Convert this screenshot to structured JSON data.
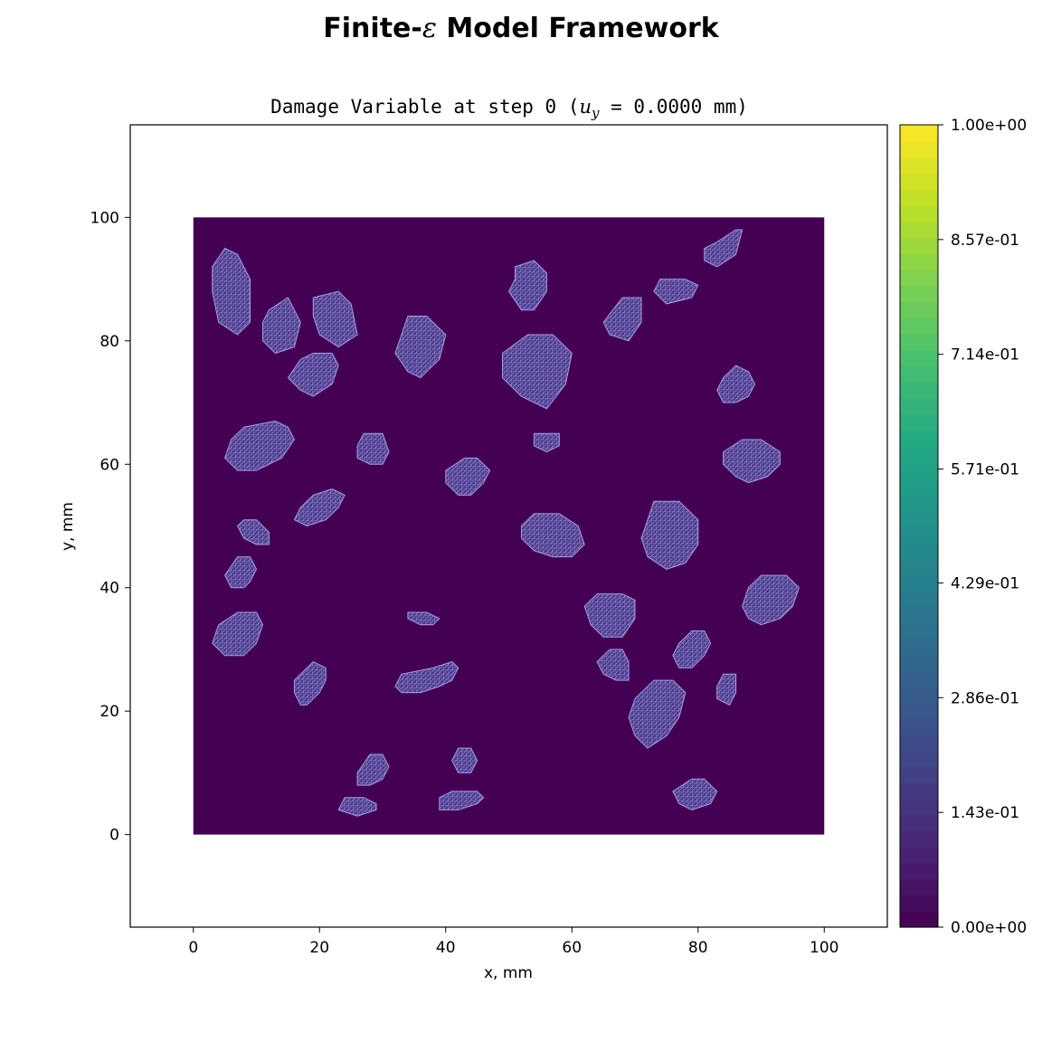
{
  "figure": {
    "suptitle_prefix": "Finite-",
    "suptitle_symbol": "ε",
    "suptitle_suffix": " Model Framework"
  },
  "chart_data": {
    "type": "heatmap",
    "title_prefix": "Damage Variable at step  0 (",
    "title_var": "u",
    "title_sub": "y",
    "title_suffix": " = 0.0000 mm)",
    "xlabel": "x, mm",
    "ylabel": "y, mm",
    "xlim": [
      -10,
      110
    ],
    "ylim": [
      -15,
      115
    ],
    "xticks": [
      0,
      20,
      40,
      60,
      80,
      100
    ],
    "yticks": [
      0,
      20,
      40,
      60,
      80,
      100
    ],
    "domain": {
      "x": [
        0,
        100
      ],
      "y": [
        0,
        100
      ],
      "damage_value": 0.0
    },
    "colorbar": {
      "min": 0.0,
      "max": 1.0,
      "levels": 50,
      "tick_values": [
        0.0,
        0.143,
        0.286,
        0.429,
        0.571,
        0.714,
        0.857,
        1.0
      ],
      "tick_labels": [
        "0.00e+00",
        "1.43e-01",
        "2.86e-01",
        "4.29e-01",
        "5.71e-01",
        "7.14e-01",
        "8.57e-01",
        "1.00e+00"
      ]
    },
    "grid": false,
    "aggregates": [
      [
        [
          5,
          95
        ],
        [
          7,
          94
        ],
        [
          9,
          90
        ],
        [
          9,
          83
        ],
        [
          7,
          81
        ],
        [
          4,
          83
        ],
        [
          3,
          88
        ],
        [
          3,
          92
        ]
      ],
      [
        [
          12,
          85
        ],
        [
          15,
          87
        ],
        [
          17,
          83
        ],
        [
          16,
          79
        ],
        [
          13,
          78
        ],
        [
          11,
          80
        ],
        [
          11,
          83
        ]
      ],
      [
        [
          19,
          87
        ],
        [
          23,
          88
        ],
        [
          25,
          86
        ],
        [
          26,
          81
        ],
        [
          23,
          79
        ],
        [
          20,
          81
        ],
        [
          19,
          84
        ]
      ],
      [
        [
          17,
          77
        ],
        [
          19,
          78
        ],
        [
          22,
          78
        ],
        [
          23,
          76
        ],
        [
          22,
          73
        ],
        [
          19,
          71
        ],
        [
          17,
          72
        ],
        [
          15,
          74
        ]
      ],
      [
        [
          34,
          84
        ],
        [
          37,
          84
        ],
        [
          40,
          81
        ],
        [
          39,
          77
        ],
        [
          36,
          74
        ],
        [
          34,
          75
        ],
        [
          32,
          78
        ],
        [
          33,
          81
        ]
      ],
      [
        [
          51,
          92
        ],
        [
          54,
          93
        ],
        [
          56,
          91
        ],
        [
          56,
          88
        ],
        [
          54,
          85
        ],
        [
          52,
          85
        ],
        [
          50,
          88
        ],
        [
          51,
          90
        ]
      ],
      [
        [
          53,
          81
        ],
        [
          57,
          81
        ],
        [
          60,
          78
        ],
        [
          59,
          73
        ],
        [
          56,
          69
        ],
        [
          52,
          71
        ],
        [
          49,
          74
        ],
        [
          49,
          78
        ]
      ],
      [
        [
          74,
          90
        ],
        [
          78,
          90
        ],
        [
          80,
          89
        ],
        [
          79,
          87
        ],
        [
          75,
          86
        ],
        [
          73,
          88
        ]
      ],
      [
        [
          83,
          96
        ],
        [
          86,
          98
        ],
        [
          87,
          98
        ],
        [
          86,
          94
        ],
        [
          83,
          92
        ],
        [
          81,
          93
        ],
        [
          81,
          95
        ]
      ],
      [
        [
          68,
          87
        ],
        [
          71,
          87
        ],
        [
          71,
          83
        ],
        [
          69,
          80
        ],
        [
          66,
          81
        ],
        [
          65,
          83
        ]
      ],
      [
        [
          86,
          76
        ],
        [
          88,
          75
        ],
        [
          89,
          73
        ],
        [
          88,
          71
        ],
        [
          86,
          70
        ],
        [
          84,
          70
        ],
        [
          83,
          72
        ],
        [
          84,
          74
        ]
      ],
      [
        [
          8,
          66
        ],
        [
          13,
          67
        ],
        [
          15,
          66
        ],
        [
          16,
          64
        ],
        [
          14,
          61
        ],
        [
          10,
          59
        ],
        [
          7,
          59
        ],
        [
          5,
          61
        ],
        [
          6,
          64
        ]
      ],
      [
        [
          27,
          65
        ],
        [
          30,
          65
        ],
        [
          31,
          62
        ],
        [
          30,
          60
        ],
        [
          28,
          60
        ],
        [
          26,
          61
        ],
        [
          26,
          63
        ]
      ],
      [
        [
          43,
          61
        ],
        [
          45,
          61
        ],
        [
          47,
          59
        ],
        [
          46,
          57
        ],
        [
          44,
          55
        ],
        [
          42,
          55
        ],
        [
          40,
          57
        ],
        [
          40,
          59
        ]
      ],
      [
        [
          54,
          65
        ],
        [
          58,
          65
        ],
        [
          58,
          63
        ],
        [
          56,
          62
        ],
        [
          54,
          63
        ]
      ],
      [
        [
          87,
          64
        ],
        [
          90,
          64
        ],
        [
          93,
          62
        ],
        [
          93,
          60
        ],
        [
          91,
          58
        ],
        [
          88,
          57
        ],
        [
          86,
          58
        ],
        [
          84,
          60
        ],
        [
          84,
          62
        ]
      ],
      [
        [
          19,
          55
        ],
        [
          22,
          56
        ],
        [
          24,
          55
        ],
        [
          23,
          53
        ],
        [
          21,
          51
        ],
        [
          18,
          50
        ],
        [
          16,
          51
        ],
        [
          17,
          53
        ]
      ],
      [
        [
          8,
          51
        ],
        [
          10,
          51
        ],
        [
          12,
          49
        ],
        [
          12,
          47
        ],
        [
          10,
          47
        ],
        [
          8,
          48
        ],
        [
          7,
          50
        ]
      ],
      [
        [
          54,
          52
        ],
        [
          58,
          52
        ],
        [
          61,
          50
        ],
        [
          62,
          47
        ],
        [
          60,
          45
        ],
        [
          57,
          45
        ],
        [
          54,
          46
        ],
        [
          52,
          48
        ],
        [
          52,
          50
        ]
      ],
      [
        [
          73,
          54
        ],
        [
          77,
          54
        ],
        [
          80,
          51
        ],
        [
          80,
          47
        ],
        [
          78,
          44
        ],
        [
          75,
          43
        ],
        [
          72,
          45
        ],
        [
          71,
          48
        ],
        [
          72,
          51
        ]
      ],
      [
        [
          7,
          45
        ],
        [
          9,
          45
        ],
        [
          10,
          43
        ],
        [
          9,
          41
        ],
        [
          8,
          40
        ],
        [
          6,
          40
        ],
        [
          5,
          42
        ]
      ],
      [
        [
          90,
          42
        ],
        [
          94,
          42
        ],
        [
          96,
          40
        ],
        [
          95,
          37
        ],
        [
          93,
          35
        ],
        [
          90,
          34
        ],
        [
          88,
          35
        ],
        [
          87,
          37
        ],
        [
          88,
          40
        ]
      ],
      [
        [
          64,
          39
        ],
        [
          68,
          39
        ],
        [
          70,
          38
        ],
        [
          70,
          35
        ],
        [
          68,
          32
        ],
        [
          65,
          32
        ],
        [
          63,
          34
        ],
        [
          62,
          37
        ]
      ],
      [
        [
          34,
          36
        ],
        [
          37,
          36
        ],
        [
          39,
          35
        ],
        [
          38,
          34
        ],
        [
          36,
          34
        ],
        [
          34,
          35
        ]
      ],
      [
        [
          7,
          36
        ],
        [
          10,
          36
        ],
        [
          11,
          34
        ],
        [
          10,
          31
        ],
        [
          8,
          29
        ],
        [
          5,
          29
        ],
        [
          3,
          31
        ],
        [
          4,
          34
        ]
      ],
      [
        [
          79,
          33
        ],
        [
          81,
          33
        ],
        [
          82,
          31
        ],
        [
          81,
          29
        ],
        [
          79,
          27
        ],
        [
          77,
          27
        ],
        [
          76,
          29
        ],
        [
          77,
          31
        ]
      ],
      [
        [
          66,
          30
        ],
        [
          68,
          30
        ],
        [
          69,
          28
        ],
        [
          69,
          25
        ],
        [
          67,
          25
        ],
        [
          65,
          26
        ],
        [
          64,
          28
        ]
      ],
      [
        [
          19,
          28
        ],
        [
          21,
          27
        ],
        [
          21,
          25
        ],
        [
          20,
          23
        ],
        [
          18,
          21
        ],
        [
          17,
          21
        ],
        [
          16,
          23
        ],
        [
          16,
          25
        ]
      ],
      [
        [
          38,
          27
        ],
        [
          41,
          28
        ],
        [
          42,
          27
        ],
        [
          41,
          25
        ],
        [
          39,
          24
        ],
        [
          36,
          23
        ],
        [
          33,
          23
        ],
        [
          32,
          24
        ],
        [
          33,
          26
        ]
      ],
      [
        [
          84,
          26
        ],
        [
          86,
          26
        ],
        [
          86,
          23
        ],
        [
          85,
          21
        ],
        [
          83,
          22
        ],
        [
          83,
          24
        ]
      ],
      [
        [
          73,
          25
        ],
        [
          76,
          25
        ],
        [
          78,
          23
        ],
        [
          77,
          19
        ],
        [
          75,
          16
        ],
        [
          72,
          14
        ],
        [
          70,
          16
        ],
        [
          69,
          19
        ],
        [
          70,
          22
        ]
      ],
      [
        [
          28,
          13
        ],
        [
          30,
          13
        ],
        [
          31,
          11
        ],
        [
          30,
          9
        ],
        [
          28,
          8
        ],
        [
          26,
          8
        ],
        [
          26,
          10
        ]
      ],
      [
        [
          42,
          14
        ],
        [
          44,
          14
        ],
        [
          45,
          12
        ],
        [
          44,
          10
        ],
        [
          42,
          10
        ],
        [
          41,
          12
        ]
      ],
      [
        [
          79,
          9
        ],
        [
          81,
          9
        ],
        [
          83,
          7
        ],
        [
          82,
          5
        ],
        [
          79,
          4
        ],
        [
          77,
          5
        ],
        [
          76,
          7
        ]
      ],
      [
        [
          41,
          7
        ],
        [
          45,
          7
        ],
        [
          46,
          6
        ],
        [
          45,
          5
        ],
        [
          42,
          4
        ],
        [
          39,
          4
        ],
        [
          39,
          6
        ]
      ],
      [
        [
          24,
          6
        ],
        [
          27,
          6
        ],
        [
          29,
          5
        ],
        [
          29,
          4
        ],
        [
          26,
          3
        ],
        [
          23,
          4
        ]
      ]
    ]
  }
}
